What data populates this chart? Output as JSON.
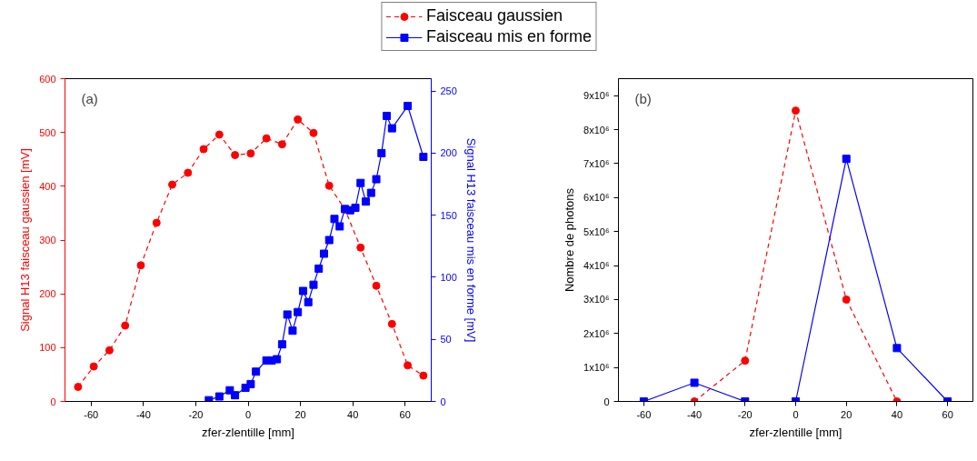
{
  "chart_data": [
    {
      "type": "line",
      "xlabel": "zfer-zlentille [mm]",
      "ylabel": "Signal H13 faisceau gaussien [mV]",
      "y2label": "Signal H13 faisceau mis en forme [mV]",
      "annotations": [
        "(a)"
      ],
      "legend": "top",
      "grid": false,
      "xlim": [
        -70,
        70
      ],
      "xticks": [
        -60,
        -40,
        -20,
        0,
        20,
        40,
        60
      ],
      "ylim": [
        0,
        600
      ],
      "yticks": [
        0,
        100,
        200,
        300,
        400,
        500,
        600
      ],
      "y2lim": [
        0,
        260
      ],
      "y2ticks": [
        0,
        50,
        100,
        150,
        200,
        250
      ],
      "series": [
        {
          "name": "Faisceau gaussien",
          "color": "#ff0000",
          "marker": "circle",
          "line_style": "dashed",
          "x": [
            -65,
            -59,
            -53,
            -47,
            -41,
            -35,
            -29,
            -23,
            -17,
            -11,
            -5,
            1,
            7,
            13,
            19,
            25,
            31,
            37,
            43,
            49,
            55,
            61,
            67
          ],
          "values": [
            27,
            65,
            95,
            141,
            253,
            332,
            403,
            425,
            469,
            496,
            458,
            461,
            489,
            478,
            524,
            499,
            401,
            357,
            286,
            215,
            144,
            67,
            48
          ]
        },
        {
          "name": "Faisceau mis en forme",
          "color": "#0000ff",
          "marker": "square",
          "line_style": "solid",
          "axis": "y2",
          "x": [
            -15,
            -11,
            -7,
            -5,
            -1,
            1,
            3,
            7,
            9,
            11,
            13,
            15,
            17,
            19,
            21,
            23,
            25,
            27,
            29,
            31,
            33,
            35,
            37,
            39,
            41,
            43,
            45,
            47,
            49,
            51,
            53,
            55,
            61,
            67
          ],
          "values": [
            1,
            4,
            9,
            5,
            11,
            14,
            24,
            33,
            33,
            34,
            46,
            70,
            57,
            72,
            89,
            80,
            94,
            107,
            119,
            130,
            147,
            141,
            155,
            154,
            156,
            176,
            161,
            168,
            179,
            200,
            230,
            220,
            238,
            197
          ]
        }
      ]
    },
    {
      "type": "line",
      "xlabel": "zfer-zlentille [mm]",
      "ylabel": "Nombre de photons",
      "annotations": [
        "(b)"
      ],
      "grid": false,
      "xlim": [
        -70,
        70
      ],
      "xticks": [
        -60,
        -40,
        -20,
        0,
        20,
        40,
        60
      ],
      "ylim": [
        0,
        9500000
      ],
      "yticks": [
        0,
        {
          "value": 1000000,
          "label": "1x10⁶"
        },
        {
          "value": 2000000,
          "label": "2x10⁶"
        },
        {
          "value": 3000000,
          "label": "3x10⁶"
        },
        {
          "value": 4000000,
          "label": "4x10⁶"
        },
        {
          "value": 5000000,
          "label": "5x10⁶"
        },
        {
          "value": 6000000,
          "label": "6x10⁶"
        },
        {
          "value": 7000000,
          "label": "7x10⁶"
        },
        {
          "value": 8000000,
          "label": "8x10⁶"
        },
        {
          "value": 9000000,
          "label": "9x10⁶"
        }
      ],
      "series": [
        {
          "color": "#ff0000",
          "marker": "circle",
          "line_style": "dashed",
          "x": [
            -40,
            -20,
            0,
            20,
            40,
            60
          ],
          "values": [
            0,
            1200000,
            8560000,
            3000000,
            0,
            0
          ]
        },
        {
          "color": "#0000ff",
          "marker": "square",
          "line_style": "solid",
          "x": [
            -60,
            -40,
            -20,
            0,
            20,
            40,
            60
          ],
          "values": [
            0,
            550000,
            0,
            0,
            7140000,
            1570000,
            0
          ]
        }
      ]
    }
  ]
}
